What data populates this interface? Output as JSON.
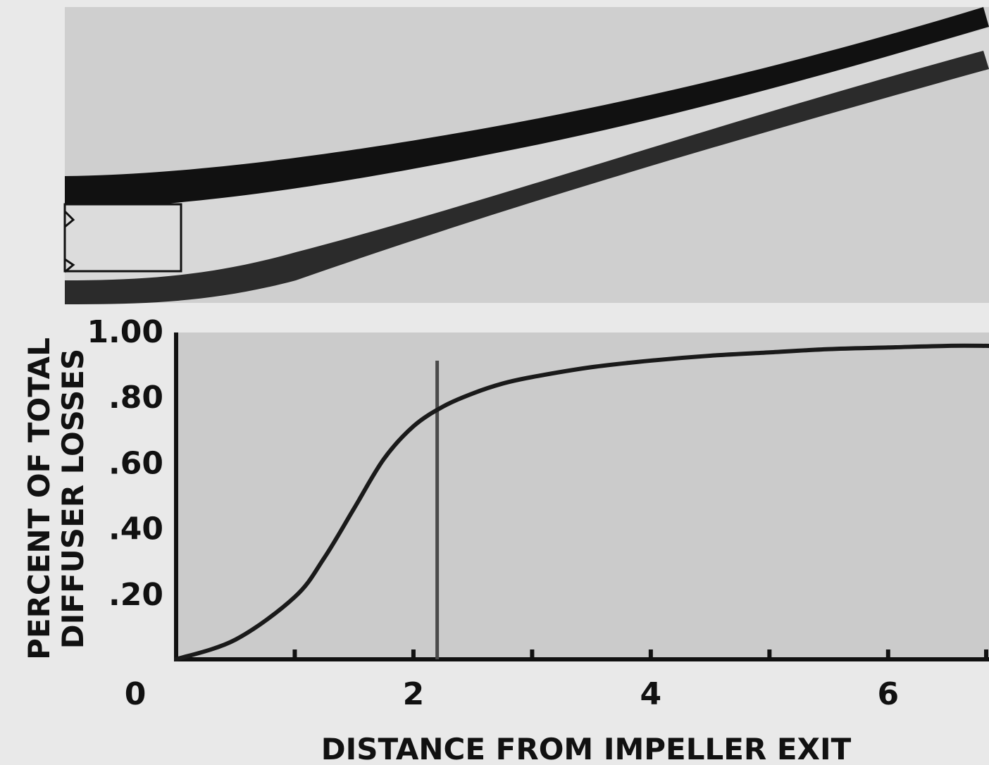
{
  "chart_data": {
    "type": "line",
    "title": "",
    "xlabel": "DISTANCE FROM IMPELLER EXIT",
    "ylabel_line1": "PERCENT OF TOTAL",
    "ylabel_line2": "DIFFUSER LOSSES",
    "xlim": [
      0,
      6.85
    ],
    "ylim": [
      0,
      1.0
    ],
    "x_ticks": [
      0,
      1,
      2,
      3,
      4,
      5,
      6,
      7
    ],
    "x_tick_labels": [
      {
        "x": 0,
        "label": "0"
      },
      {
        "x": 2,
        "label": "2"
      },
      {
        "x": 4,
        "label": "4"
      },
      {
        "x": 6,
        "label": "6"
      }
    ],
    "y_tick_labels": [
      {
        "y": 0.2,
        "label": ".20"
      },
      {
        "y": 0.4,
        "label": ".40"
      },
      {
        "y": 0.6,
        "label": ".60"
      },
      {
        "y": 0.8,
        "label": ".80"
      },
      {
        "y": 1.0,
        "label": "1.00"
      }
    ],
    "series": [
      {
        "x": [
          0,
          0.5,
          1.0,
          1.25,
          1.5,
          1.75,
          2.0,
          2.25,
          2.5,
          2.75,
          3.0,
          3.5,
          4.0,
          4.5,
          5.0,
          5.5,
          6.0,
          6.5,
          6.85
        ],
        "y": [
          0.0,
          0.06,
          0.19,
          0.31,
          0.46,
          0.61,
          0.71,
          0.77,
          0.81,
          0.84,
          0.86,
          0.89,
          0.91,
          0.925,
          0.935,
          0.945,
          0.95,
          0.955,
          0.955
        ]
      }
    ],
    "marker_line": {
      "x": 2.2,
      "y_top": 0.91
    },
    "grid": false,
    "legend": "none"
  },
  "colors": {
    "background": "#e9e9e9",
    "plot_bg": "#cbcbcb",
    "curve": "#1a1a1a",
    "marker_line": "#4a4a4a",
    "diffuser_wall": "#111111",
    "diffuser_inner": "#d8d8d8"
  }
}
